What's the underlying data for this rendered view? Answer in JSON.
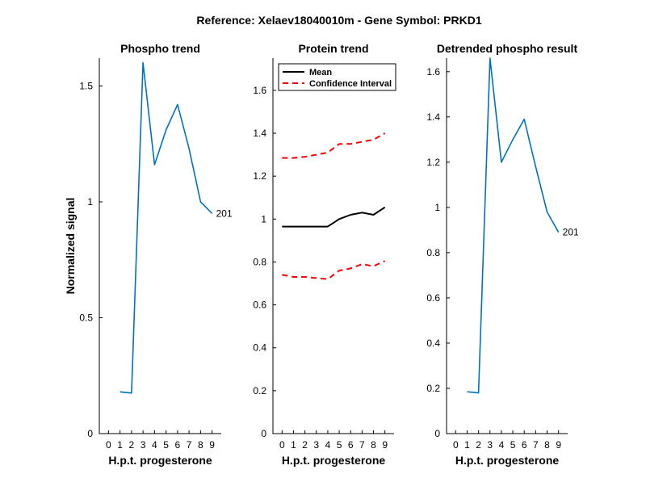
{
  "figure_title": "Reference:  Xelaev18040010m - Gene Symbol:  PRKD1",
  "colors": {
    "series": "#0072bd",
    "mean": "#000000",
    "ci": "#ff0000"
  },
  "chart_data": [
    {
      "type": "line",
      "title": "Phospho trend",
      "xlabel": "H.p.t. progesterone",
      "ylabel": "Normalized signal",
      "x": [
        0,
        1,
        2,
        3,
        4,
        5,
        6,
        7,
        8,
        9
      ],
      "xlim": [
        -0.8,
        9.8
      ],
      "ylim": [
        0,
        1.62
      ],
      "xticks": [
        0,
        1,
        2,
        3,
        4,
        5,
        6,
        7,
        8,
        9
      ],
      "yticks": [
        0,
        0.5,
        1,
        1.5
      ],
      "ytick_labels": [
        "0",
        "0.5",
        "1",
        "1.5"
      ],
      "series": [
        {
          "values": [
            0.18,
            0.175,
            1.6,
            1.16,
            1.31,
            1.42,
            1.23,
            1.0,
            0.95
          ],
          "x": [
            1,
            2,
            3,
            4,
            5,
            6,
            7,
            8,
            9
          ]
        }
      ],
      "annotation": {
        "text": "201",
        "x": 9,
        "y": 0.95
      }
    },
    {
      "type": "line",
      "title": "Protein trend",
      "xlabel": "H.p.t. progesterone",
      "ylabel": "",
      "xlim": [
        -0.8,
        9.8
      ],
      "ylim": [
        0,
        1.75
      ],
      "xticks": [
        0,
        1,
        2,
        3,
        4,
        5,
        6,
        7,
        8,
        9
      ],
      "yticks": [
        0,
        0.2,
        0.4,
        0.6,
        0.8,
        1,
        1.2,
        1.4,
        1.6
      ],
      "ytick_labels": [
        "0",
        "0.2",
        "0.4",
        "0.6",
        "0.8",
        "1",
        "1.2",
        "1.4",
        "1.6"
      ],
      "legend": {
        "placement": "top-left",
        "entries": [
          "Mean",
          "Confidence Interval"
        ]
      },
      "series": [
        {
          "name": "Mean",
          "x": [
            0,
            1,
            2,
            3,
            4,
            5,
            6,
            7,
            8,
            9
          ],
          "values": [
            0.965,
            0.965,
            0.965,
            0.965,
            0.965,
            1.0,
            1.02,
            1.03,
            1.02,
            1.055
          ]
        },
        {
          "name": "Confidence Interval",
          "x": [
            0,
            1,
            2,
            3,
            4,
            5,
            6,
            7,
            8,
            9
          ],
          "values": [
            1.285,
            1.285,
            1.29,
            1.3,
            1.31,
            1.35,
            1.35,
            1.36,
            1.37,
            1.4
          ]
        },
        {
          "name": "Confidence Interval",
          "x": [
            0,
            1,
            2,
            3,
            4,
            5,
            6,
            7,
            8,
            9
          ],
          "values": [
            0.74,
            0.73,
            0.73,
            0.725,
            0.72,
            0.76,
            0.77,
            0.79,
            0.78,
            0.805
          ]
        }
      ]
    },
    {
      "type": "line",
      "title": "Detrended phospho result",
      "xlabel": "H.p.t. progesterone",
      "ylabel": "",
      "xlim": [
        -0.8,
        9.8
      ],
      "ylim": [
        0,
        1.66
      ],
      "xticks": [
        0,
        1,
        2,
        3,
        4,
        5,
        6,
        7,
        8,
        9
      ],
      "yticks": [
        0,
        0.2,
        0.4,
        0.6,
        0.8,
        1,
        1.2,
        1.4,
        1.6
      ],
      "ytick_labels": [
        "0",
        "0.2",
        "0.4",
        "0.6",
        "0.8",
        "1",
        "1.2",
        "1.4",
        "1.6"
      ],
      "series": [
        {
          "x": [
            1,
            2,
            3,
            4,
            5,
            6,
            7,
            8,
            9
          ],
          "values": [
            0.185,
            0.18,
            1.66,
            1.2,
            1.3,
            1.39,
            1.18,
            0.98,
            0.89
          ]
        }
      ],
      "annotation": {
        "text": "201",
        "x": 9,
        "y": 0.89
      }
    }
  ]
}
